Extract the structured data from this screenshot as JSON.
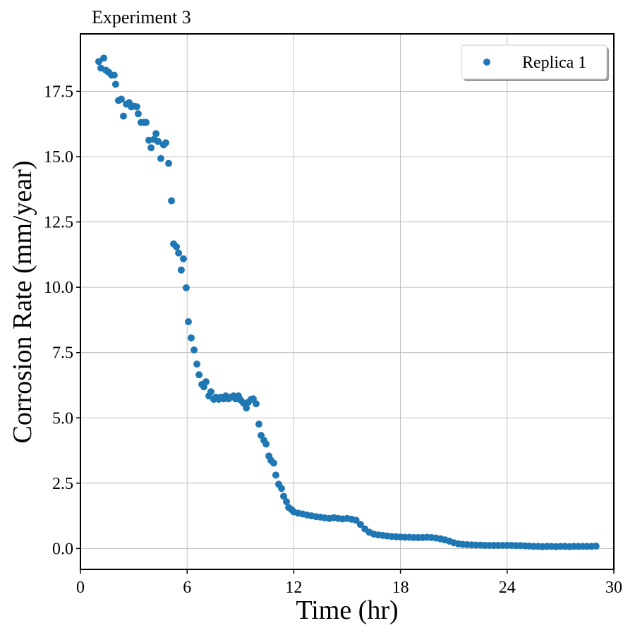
{
  "chart_data": {
    "type": "scatter",
    "title": "Experiment 3",
    "xlabel": "Time (hr)",
    "ylabel": "Corrosion Rate (mm/year)",
    "xlim": [
      0,
      30
    ],
    "ylim": [
      -0.8,
      19.7
    ],
    "xticks": [
      0,
      6,
      12,
      18,
      24,
      30
    ],
    "yticks": [
      {
        "value": 0,
        "label": "0.0"
      },
      2.5,
      {
        "value": 5,
        "label": "5.0"
      },
      7.5,
      {
        "value": 10,
        "label": "10.0"
      },
      12.5,
      {
        "value": 15,
        "label": "15.0"
      },
      17.5
    ],
    "grid": true,
    "legend": "upper right",
    "series": [
      {
        "name": "Replica 1",
        "color": "#1f77b4",
        "x": [
          1.03,
          1.15,
          1.31,
          1.43,
          1.59,
          1.75,
          1.9,
          1.98,
          2.14,
          2.3,
          2.42,
          2.58,
          2.74,
          2.86,
          3.02,
          3.17,
          3.25,
          3.41,
          3.57,
          3.69,
          3.85,
          3.97,
          4.13,
          4.25,
          4.37,
          4.52,
          4.68,
          4.8,
          4.96,
          5.12,
          5.24,
          5.4,
          5.52,
          5.67,
          5.79,
          5.95,
          6.07,
          6.23,
          6.39,
          6.55,
          6.67,
          6.83,
          6.94,
          7.06,
          7.22,
          7.34,
          7.5,
          7.62,
          7.78,
          7.9,
          8.06,
          8.17,
          8.33,
          8.45,
          8.61,
          8.73,
          8.89,
          9.01,
          9.17,
          9.33,
          9.44,
          9.6,
          9.72,
          9.88,
          10.04,
          10.16,
          10.32,
          10.44,
          10.6,
          10.71,
          10.87,
          10.99,
          11.15,
          11.31,
          11.43,
          11.59,
          11.71,
          11.87,
          12.0,
          12.25,
          12.5,
          12.75,
          13.0,
          13.25,
          13.5,
          13.75,
          14.0,
          14.25,
          14.5,
          14.75,
          15.0,
          15.25,
          15.5,
          15.75,
          16.0,
          16.25,
          16.5,
          16.75,
          17.0,
          17.25,
          17.5,
          17.75,
          18.0,
          18.25,
          18.5,
          18.75,
          19.0,
          19.25,
          19.5,
          19.75,
          20.0,
          20.25,
          20.5,
          20.75,
          21.0,
          21.25,
          21.5,
          21.75,
          22.0,
          22.25,
          22.5,
          22.75,
          23.0,
          23.25,
          23.5,
          23.75,
          24.0,
          24.25,
          24.5,
          24.75,
          25.0,
          25.25,
          25.5,
          25.75,
          26.0,
          26.25,
          26.5,
          26.75,
          27.0,
          27.25,
          27.5,
          27.75,
          28.0,
          28.25,
          28.5,
          28.75,
          29.0
        ],
        "values": [
          18.64,
          18.39,
          18.77,
          18.31,
          18.23,
          18.12,
          18.12,
          17.77,
          17.15,
          17.2,
          16.55,
          17.01,
          17.07,
          16.91,
          16.93,
          16.91,
          16.64,
          16.31,
          16.31,
          16.31,
          15.63,
          15.34,
          15.66,
          15.88,
          15.58,
          14.93,
          15.45,
          15.53,
          14.74,
          13.31,
          11.66,
          11.55,
          11.31,
          10.66,
          11.09,
          9.98,
          8.68,
          8.06,
          7.6,
          7.06,
          6.65,
          6.28,
          6.19,
          6.38,
          5.84,
          6.0,
          5.71,
          5.79,
          5.71,
          5.79,
          5.73,
          5.84,
          5.73,
          5.79,
          5.84,
          5.73,
          5.84,
          5.68,
          5.57,
          5.38,
          5.6,
          5.71,
          5.73,
          5.54,
          4.76,
          4.33,
          4.14,
          4.0,
          3.54,
          3.38,
          3.27,
          2.81,
          2.46,
          2.3,
          2.0,
          1.79,
          1.57,
          1.49,
          1.4,
          1.35,
          1.32,
          1.28,
          1.25,
          1.22,
          1.2,
          1.17,
          1.15,
          1.18,
          1.15,
          1.13,
          1.15,
          1.12,
          1.08,
          0.92,
          0.75,
          0.62,
          0.55,
          0.52,
          0.5,
          0.48,
          0.46,
          0.45,
          0.44,
          0.43,
          0.43,
          0.42,
          0.42,
          0.42,
          0.43,
          0.42,
          0.4,
          0.37,
          0.33,
          0.28,
          0.22,
          0.18,
          0.16,
          0.15,
          0.14,
          0.13,
          0.13,
          0.12,
          0.12,
          0.12,
          0.12,
          0.12,
          0.12,
          0.12,
          0.11,
          0.11,
          0.1,
          0.09,
          0.08,
          0.08,
          0.07,
          0.08,
          0.08,
          0.07,
          0.08,
          0.08,
          0.07,
          0.08,
          0.08,
          0.08,
          0.08,
          0.08,
          0.09
        ]
      }
    ]
  }
}
